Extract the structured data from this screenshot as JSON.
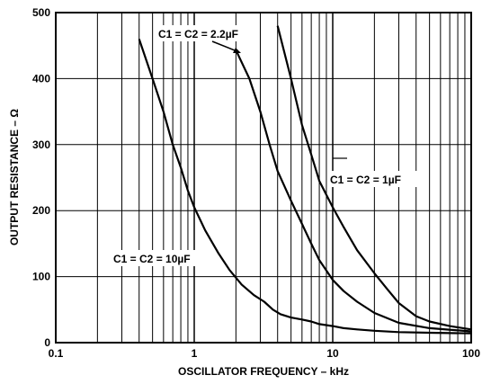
{
  "chart_data": {
    "type": "line",
    "xlabel": "OSCILLATOR FREQUENCY – kHz",
    "ylabel": "OUTPUT RESISTANCE – Ω",
    "xscale": "log",
    "xlim": [
      0.1,
      100
    ],
    "ylim": [
      0,
      500
    ],
    "xticks": [
      {
        "value": 0.1,
        "label": "0.1"
      },
      {
        "value": 1,
        "label": "1"
      },
      {
        "value": 10,
        "label": "10"
      },
      {
        "value": 100,
        "label": "100"
      }
    ],
    "yticks": [
      {
        "value": 0,
        "label": "0"
      },
      {
        "value": 100,
        "label": "100"
      },
      {
        "value": 200,
        "label": "200"
      },
      {
        "value": 300,
        "label": "300"
      },
      {
        "value": 400,
        "label": "400"
      },
      {
        "value": 500,
        "label": "500"
      }
    ],
    "grid": true,
    "series": [
      {
        "name": "C1 = C2 = 10µF",
        "color": "#000000",
        "points": [
          [
            0.4,
            460
          ],
          [
            0.5,
            400
          ],
          [
            0.6,
            350
          ],
          [
            0.7,
            300
          ],
          [
            0.8,
            265
          ],
          [
            0.9,
            230
          ],
          [
            1.0,
            205
          ],
          [
            1.2,
            170
          ],
          [
            1.5,
            135
          ],
          [
            1.8,
            110
          ],
          [
            2.2,
            88
          ],
          [
            2.7,
            72
          ],
          [
            3.2,
            62
          ],
          [
            3.7,
            50
          ],
          [
            4.2,
            43
          ],
          [
            5,
            38
          ],
          [
            6,
            35
          ],
          [
            7,
            32
          ],
          [
            8,
            28
          ],
          [
            10,
            25
          ],
          [
            12,
            22
          ],
          [
            15,
            20
          ],
          [
            20,
            18
          ],
          [
            30,
            16
          ],
          [
            50,
            15
          ],
          [
            100,
            14
          ]
        ]
      },
      {
        "name": "C1 = C2 = 2.2µF",
        "color": "#000000",
        "points": [
          [
            2.0,
            443
          ],
          [
            2.5,
            400
          ],
          [
            3,
            350
          ],
          [
            3.5,
            300
          ],
          [
            4,
            260
          ],
          [
            5,
            215
          ],
          [
            6,
            180
          ],
          [
            7,
            150
          ],
          [
            8,
            125
          ],
          [
            10,
            95
          ],
          [
            12,
            78
          ],
          [
            15,
            62
          ],
          [
            20,
            45
          ],
          [
            30,
            30
          ],
          [
            50,
            22
          ],
          [
            100,
            17
          ]
        ]
      },
      {
        "name": "C1 = C2 = 1µF",
        "color": "#000000",
        "points": [
          [
            4.0,
            480
          ],
          [
            5,
            400
          ],
          [
            6,
            330
          ],
          [
            7,
            285
          ],
          [
            8,
            245
          ],
          [
            10,
            205
          ],
          [
            12,
            175
          ],
          [
            15,
            140
          ],
          [
            20,
            105
          ],
          [
            25,
            80
          ],
          [
            30,
            60
          ],
          [
            40,
            40
          ],
          [
            50,
            32
          ],
          [
            70,
            25
          ],
          [
            100,
            20
          ]
        ]
      }
    ],
    "annotations": [
      "C1 = C2 = 2.2µF",
      "C1 = C2 = 1µF",
      "C1 = C2 = 10µF"
    ]
  }
}
